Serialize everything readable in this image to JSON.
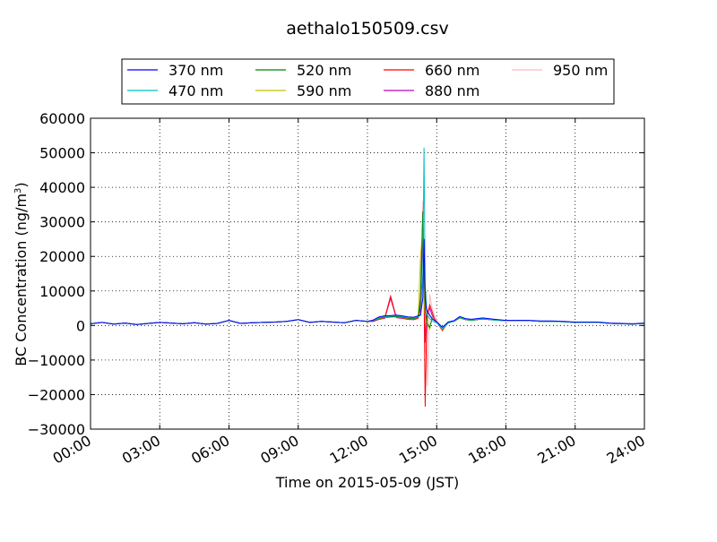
{
  "chart_data": {
    "type": "line",
    "title": "aethalo150509.csv",
    "xlabel": "Time on 2015-05-09 (JST)",
    "ylabel": "BC Concentration (ng/m",
    "ylabel_sup": "3",
    "ylabel_end": ")",
    "xlim": [
      "00:00",
      "24:00"
    ],
    "ylim": [
      -30000,
      60000
    ],
    "grid": true,
    "legend_position": "top",
    "x_ticks": [
      "00:00",
      "03:00",
      "06:00",
      "09:00",
      "12:00",
      "15:00",
      "18:00",
      "21:00",
      "24:00"
    ],
    "y_ticks": [
      "60000",
      "50000",
      "40000",
      "30000",
      "20000",
      "10000",
      "0",
      "−10000",
      "−20000",
      "−30000"
    ],
    "x_hours": [
      0,
      0.5,
      1,
      1.5,
      2,
      2.5,
      3,
      3.5,
      4,
      4.5,
      5,
      5.5,
      6,
      6.5,
      7,
      7.5,
      8,
      8.5,
      9,
      9.5,
      10,
      10.5,
      11,
      11.5,
      12,
      12.25,
      12.5,
      12.75,
      13,
      13.25,
      13.5,
      13.75,
      14,
      14.1,
      14.2,
      14.3,
      14.4,
      14.45,
      14.5,
      14.55,
      14.6,
      14.7,
      14.8,
      14.9,
      15,
      15.25,
      15.5,
      15.75,
      16,
      16.25,
      16.5,
      16.75,
      17,
      17.5,
      18,
      18.5,
      19,
      19.5,
      20,
      20.5,
      21,
      21.5,
      22,
      22.5,
      23,
      23.5,
      24
    ],
    "series": [
      {
        "name": "370 nm",
        "color": "#0000ff",
        "values": [
          500,
          900,
          400,
          700,
          300,
          600,
          900,
          700,
          500,
          800,
          400,
          600,
          1500,
          600,
          800,
          900,
          1000,
          1200,
          1700,
          900,
          1200,
          1000,
          800,
          1500,
          1200,
          1600,
          2500,
          2800,
          2900,
          3000,
          2800,
          2500,
          2400,
          2600,
          2800,
          3000,
          8000,
          25000,
          8000,
          5000,
          4000,
          3000,
          2000,
          1500,
          1000,
          -500,
          1000,
          1400,
          2600,
          2000,
          1800,
          2000,
          2200,
          1800,
          1500,
          1500,
          1500,
          1300,
          1300,
          1200,
          1000,
          1000,
          1000,
          700,
          600,
          500,
          700
        ]
      },
      {
        "name": "470 nm",
        "color": "#00bfbf",
        "values": [
          500,
          900,
          400,
          700,
          300,
          600,
          900,
          700,
          500,
          800,
          400,
          600,
          1500,
          600,
          800,
          900,
          1000,
          1200,
          1700,
          900,
          1200,
          1000,
          800,
          1500,
          1200,
          1500,
          2300,
          2600,
          2700,
          2800,
          2600,
          2300,
          2200,
          2400,
          2600,
          3000,
          15000,
          51500,
          12000,
          6000,
          3000,
          2000,
          1500,
          1000,
          800,
          -1000,
          700,
          1200,
          2400,
          1800,
          1600,
          1800,
          2000,
          1600,
          1400,
          1400,
          1400,
          1200,
          1200,
          1100,
          900,
          900,
          900,
          600,
          500,
          400,
          600
        ]
      },
      {
        "name": "520 nm",
        "color": "#008000",
        "values": [
          500,
          900,
          400,
          700,
          300,
          600,
          900,
          700,
          500,
          800,
          400,
          600,
          1500,
          600,
          800,
          900,
          1000,
          1200,
          1700,
          900,
          1200,
          1000,
          800,
          1500,
          1200,
          1400,
          2100,
          2400,
          2500,
          2600,
          2400,
          2100,
          2000,
          2200,
          2400,
          8000,
          33000,
          20000,
          5000,
          2000,
          500,
          -500,
          2000,
          1500,
          1000,
          -1000,
          800,
          1200,
          2300,
          1700,
          1500,
          1700,
          1900,
          1600,
          1400,
          1400,
          1400,
          1200,
          1200,
          1100,
          900,
          900,
          900,
          600,
          500,
          400,
          600
        ]
      },
      {
        "name": "590 nm",
        "color": "#bfbf00",
        "values": [
          500,
          900,
          400,
          700,
          300,
          600,
          900,
          700,
          500,
          800,
          400,
          600,
          1500,
          600,
          800,
          900,
          1000,
          1200,
          1700,
          900,
          1200,
          1000,
          800,
          1500,
          1200,
          1400,
          2000,
          2300,
          2400,
          2500,
          2300,
          2000,
          1900,
          2100,
          2300,
          20000,
          28000,
          8000,
          3000,
          1000,
          0,
          -1000,
          2500,
          1500,
          1000,
          -1200,
          800,
          1200,
          2200,
          1700,
          1500,
          1700,
          1900,
          1600,
          1400,
          1400,
          1400,
          1200,
          1200,
          1100,
          900,
          900,
          900,
          600,
          500,
          400,
          600
        ]
      },
      {
        "name": "660 nm",
        "color": "#ff0000",
        "values": [
          500,
          900,
          400,
          700,
          300,
          600,
          900,
          700,
          500,
          800,
          400,
          600,
          1500,
          600,
          800,
          900,
          1000,
          1200,
          1700,
          900,
          1200,
          1000,
          800,
          1500,
          1200,
          1300,
          1900,
          2200,
          8500,
          2400,
          2200,
          1900,
          1800,
          2000,
          2200,
          5000,
          33000,
          10000,
          -23500,
          -5000,
          3000,
          6000,
          4000,
          2000,
          1000,
          -1500,
          1000,
          1200,
          2200,
          1700,
          1500,
          1700,
          1900,
          1600,
          1400,
          1400,
          1400,
          1200,
          1200,
          1100,
          900,
          900,
          900,
          600,
          500,
          400,
          600
        ]
      },
      {
        "name": "880 nm",
        "color": "#bf00bf",
        "values": [
          500,
          900,
          400,
          700,
          300,
          600,
          900,
          700,
          500,
          800,
          400,
          600,
          1500,
          600,
          800,
          900,
          1000,
          1200,
          1700,
          900,
          1200,
          1000,
          800,
          1500,
          1200,
          1200,
          1800,
          2100,
          8000,
          2300,
          2100,
          1800,
          1700,
          1900,
          2100,
          6000,
          26000,
          12000,
          -5000,
          2000,
          4000,
          5000,
          3000,
          2000,
          1000,
          -1200,
          900,
          1200,
          2200,
          1700,
          1500,
          1700,
          1900,
          1600,
          1400,
          1400,
          1400,
          1200,
          1200,
          1100,
          900,
          900,
          900,
          600,
          500,
          400,
          600
        ]
      },
      {
        "name": "950 nm",
        "color": "#ffb6c1",
        "values": [
          500,
          900,
          400,
          700,
          300,
          600,
          900,
          700,
          500,
          800,
          400,
          600,
          1500,
          600,
          800,
          900,
          1000,
          1200,
          1700,
          900,
          1200,
          1000,
          800,
          1500,
          1200,
          1100,
          1700,
          2000,
          7500,
          2200,
          2000,
          1700,
          1600,
          1800,
          2000,
          10000,
          36000,
          14000,
          -8000,
          10000,
          -17500,
          9000,
          5000,
          3000,
          1500,
          -800,
          1000,
          1200,
          2200,
          1700,
          1500,
          1700,
          1900,
          1600,
          1400,
          1400,
          1400,
          1200,
          1200,
          1100,
          900,
          900,
          900,
          600,
          500,
          400,
          600
        ]
      }
    ]
  }
}
